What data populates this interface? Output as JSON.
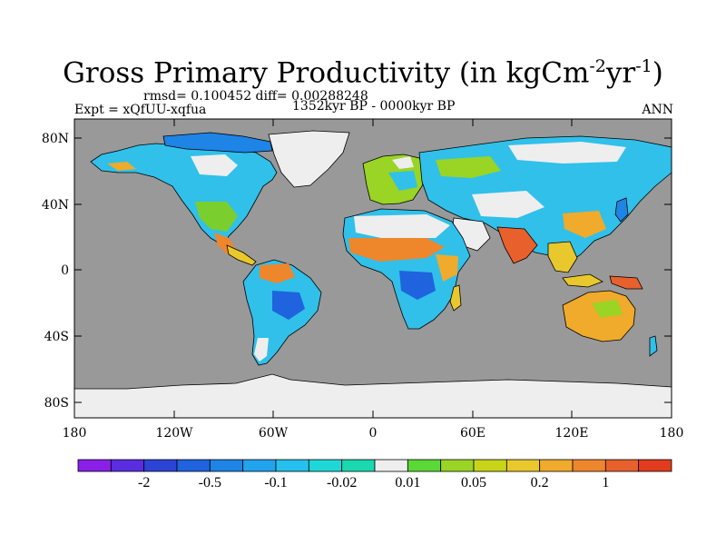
{
  "title": {
    "main": "Gross Primary Productivity (in kgCm",
    "exp1": "-2",
    "unit2": "yr",
    "exp2": "-1",
    "close": ")"
  },
  "stats": "rmsd= 0.100452 diff= 0.00288248",
  "experiment": "Expt = xQfUU-xqfua",
  "period": "1352kyr BP - 0000kyr BP",
  "season": "ANN",
  "axes": {
    "lat_labels": [
      "80N",
      "40N",
      "0",
      "40S",
      "80S"
    ],
    "lon_labels": [
      "180",
      "120W",
      "60W",
      "0",
      "60E",
      "120E",
      "180"
    ]
  },
  "colorbar": {
    "colors": [
      "#8a20e8",
      "#5a2de0",
      "#2c44d6",
      "#1f63de",
      "#1e84e6",
      "#22a3ee",
      "#26c0ee",
      "#1ed8d8",
      "#1ad8b0",
      "#eeeeee",
      "#5ad836",
      "#9ad424",
      "#c8d418",
      "#e8c82c",
      "#f0aa2c",
      "#ee862c",
      "#e8602c",
      "#e23c1e"
    ],
    "labels": [
      "-2",
      "-0.5",
      "-0.1",
      "-0.02",
      "0.01",
      "0.05",
      "0.2",
      "1"
    ]
  }
}
